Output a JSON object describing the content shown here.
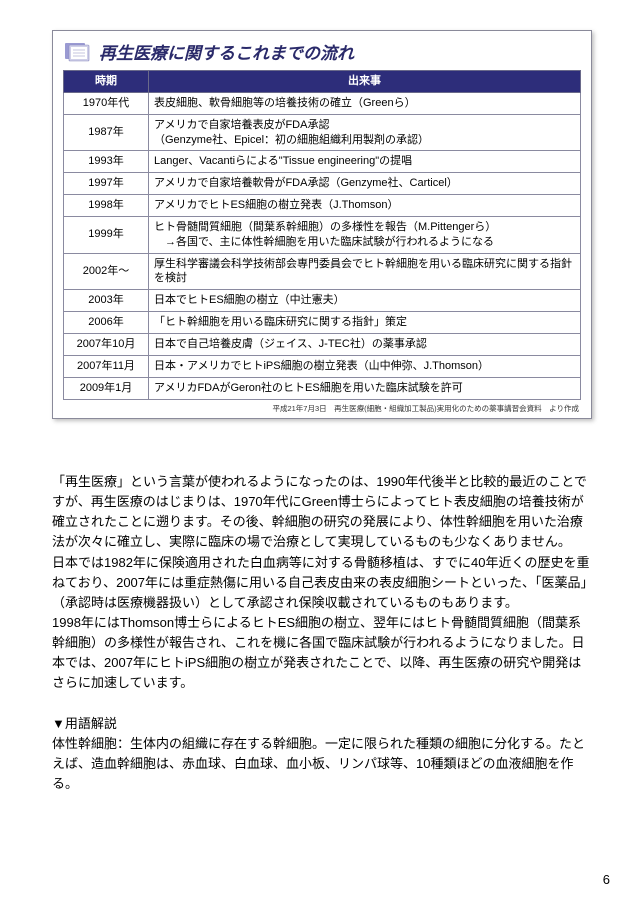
{
  "frame": {
    "title": "再生医療に関するこれまでの流れ",
    "icon_name": "book-icon",
    "icon_colors": {
      "back": "#9a9ad2",
      "front": "#cfcfe8",
      "page": "#ffffff"
    },
    "header_bg": "#2d2d7a",
    "header_period": "時期",
    "header_event": "出来事",
    "rows": [
      {
        "period": "1970年代",
        "event": "表皮細胞、軟骨細胞等の培養技術の確立（Greenら）"
      },
      {
        "period": "1987年",
        "event": "アメリカで自家培養表皮がFDA承認\n（Genzyme社、Epicel：初の細胞組織利用製剤の承認）"
      },
      {
        "period": "1993年",
        "event": "Langer、Vacantiらによる\"Tissue engineering\"の提唱"
      },
      {
        "period": "1997年",
        "event": "アメリカで自家培養軟骨がFDA承認（Genzyme社、Carticel）"
      },
      {
        "period": "1998年",
        "event": "アメリカでヒトES細胞の樹立発表（J.Thomson）"
      },
      {
        "period": "1999年",
        "event": "ヒト骨髄間質細胞（間葉系幹細胞）の多様性を報告（M.Pittengerら）\n　→各国で、主に体性幹細胞を用いた臨床試験が行われるようになる"
      },
      {
        "period": "2002年〜",
        "event": "厚生科学審議会科学技術部会専門委員会でヒト幹細胞を用いる臨床研究に関する指針を検討"
      },
      {
        "period": "2003年",
        "event": "日本でヒトES細胞の樹立（中辻憲夫）"
      },
      {
        "period": "2006年",
        "event": "「ヒト幹細胞を用いる臨床研究に関する指針」策定"
      },
      {
        "period": "2007年10月",
        "event": "日本で自己培養皮膚（ジェイス、J-TEC社）の薬事承認"
      },
      {
        "period": "2007年11月",
        "event": "日本・アメリカでヒトiPS細胞の樹立発表（山中伸弥、J.Thomson）"
      },
      {
        "period": "2009年1月",
        "event": "アメリカFDAがGeron社のヒトES細胞を用いた臨床試験を許可"
      }
    ],
    "source": "平成21年7月3日　再生医療(細胞・組織加工製品)実用化のための薬事講習会資料　より作成"
  },
  "body": {
    "para1": "「再生医療」という言葉が使われるようになったのは、1990年代後半と比較的最近のことですが、再生医療のはじまりは、1970年代にGreen博士らによってヒト表皮細胞の培養技術が確立されたことに遡ります。その後、幹細胞の研究の発展により、体性幹細胞を用いた治療法が次々に確立し、実際に臨床の場で治療として実現しているものも少なくありません。",
    "para2": "日本では1982年に保険適用された白血病等に対する骨髄移植は、すでに40年近くの歴史を重ねており、2007年には重症熱傷に用いる自己表皮由来の表皮細胞シートといった、「医薬品」（承認時は医療機器扱い）として承認され保険収載されているものもあります。",
    "para3": "1998年にはThomson博士らによるヒトES細胞の樹立、翌年にはヒト骨髄間質細胞（間葉系幹細胞）の多様性が報告され、これを機に各国で臨床試験が行われるようになりました。日本では、2007年にヒトiPS細胞の樹立が発表されたことで、以降、再生医療の研究や開発はさらに加速しています。",
    "glossary_heading": "▼用語解説",
    "glossary_body": "体性幹細胞：生体内の組織に存在する幹細胞。一定に限られた種類の細胞に分化する。たとえば、造血幹細胞は、赤血球、白血球、血小板、リンパ球等、10種類ほどの血液細胞を作る。"
  },
  "page_number": "6"
}
